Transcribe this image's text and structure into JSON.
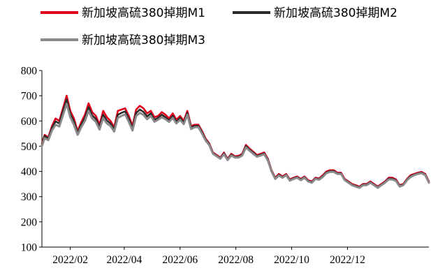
{
  "chart_data": {
    "type": "line",
    "title": "",
    "xlabel": "",
    "ylabel": "",
    "ylim": [
      100,
      800
    ],
    "yticks": [
      100,
      200,
      300,
      400,
      500,
      600,
      700,
      800
    ],
    "xlim": [
      "2022-01-01",
      "2023-02-28"
    ],
    "xticks": [
      "2022/02",
      "2022/04",
      "2022/06",
      "2022/08",
      "2022/10",
      "2022/12"
    ],
    "xtick_dates": [
      "2022-02-01",
      "2022-04-01",
      "2022-06-01",
      "2022-08-01",
      "2022-10-01",
      "2022-12-01"
    ],
    "grid": false,
    "legend_position": "top",
    "series": [
      {
        "name": "新加坡高硫380掉期M1",
        "color": "#e0001b",
        "x": [
          "2022-01-01",
          "2022-01-04",
          "2022-01-08",
          "2022-01-12",
          "2022-01-16",
          "2022-01-20",
          "2022-01-24",
          "2022-01-28",
          "2022-02-01",
          "2022-02-05",
          "2022-02-09",
          "2022-02-13",
          "2022-02-17",
          "2022-02-21",
          "2022-02-25",
          "2022-03-01",
          "2022-03-05",
          "2022-03-09",
          "2022-03-13",
          "2022-03-17",
          "2022-03-21",
          "2022-03-25",
          "2022-03-29",
          "2022-04-02",
          "2022-04-06",
          "2022-04-10",
          "2022-04-14",
          "2022-04-18",
          "2022-04-22",
          "2022-04-26",
          "2022-04-30",
          "2022-05-04",
          "2022-05-08",
          "2022-05-12",
          "2022-05-16",
          "2022-05-20",
          "2022-05-24",
          "2022-05-28",
          "2022-06-01",
          "2022-06-05",
          "2022-06-09",
          "2022-06-13",
          "2022-06-17",
          "2022-06-21",
          "2022-06-25",
          "2022-06-29",
          "2022-07-03",
          "2022-07-07",
          "2022-07-11",
          "2022-07-15",
          "2022-07-19",
          "2022-07-23",
          "2022-07-27",
          "2022-07-31",
          "2022-08-04",
          "2022-08-08",
          "2022-08-12",
          "2022-08-16",
          "2022-08-20",
          "2022-08-24",
          "2022-08-28",
          "2022-09-01",
          "2022-09-05",
          "2022-09-09",
          "2022-09-13",
          "2022-09-17",
          "2022-09-21",
          "2022-09-25",
          "2022-09-29",
          "2022-10-03",
          "2022-10-07",
          "2022-10-11",
          "2022-10-15",
          "2022-10-19",
          "2022-10-23",
          "2022-10-27",
          "2022-10-31",
          "2022-11-04",
          "2022-11-08",
          "2022-11-12",
          "2022-11-16",
          "2022-11-20",
          "2022-11-24",
          "2022-11-28",
          "2022-12-02",
          "2022-12-06",
          "2022-12-10",
          "2022-12-14",
          "2022-12-18",
          "2022-12-22",
          "2022-12-26",
          "2022-12-30",
          "2023-01-03",
          "2023-01-07",
          "2023-01-11",
          "2023-01-15",
          "2023-01-19",
          "2023-01-23",
          "2023-01-27",
          "2023-01-31",
          "2023-02-04",
          "2023-02-08",
          "2023-02-12",
          "2023-02-16",
          "2023-02-20",
          "2023-02-24",
          "2023-02-28"
        ],
        "values": [
          510,
          545,
          535,
          580,
          610,
          600,
          650,
          700,
          640,
          610,
          560,
          595,
          625,
          670,
          635,
          620,
          585,
          640,
          615,
          600,
          575,
          640,
          645,
          650,
          620,
          580,
          645,
          660,
          650,
          630,
          640,
          615,
          620,
          635,
          625,
          610,
          630,
          605,
          620,
          600,
          640,
          580,
          585,
          585,
          560,
          530,
          510,
          475,
          465,
          455,
          475,
          450,
          470,
          460,
          462,
          470,
          505,
          490,
          478,
          465,
          470,
          475,
          450,
          405,
          375,
          390,
          380,
          390,
          368,
          375,
          380,
          370,
          380,
          365,
          360,
          375,
          372,
          385,
          400,
          405,
          405,
          395,
          395,
          370,
          360,
          350,
          345,
          340,
          350,
          350,
          360,
          350,
          340,
          350,
          360,
          375,
          375,
          368,
          345,
          350,
          370,
          385,
          390,
          395,
          398,
          390,
          360
        ]
      },
      {
        "name": "新加坡高硫380掉期M2",
        "color": "#2b2b2b",
        "x": [
          "2022-01-01",
          "2022-01-04",
          "2022-01-08",
          "2022-01-12",
          "2022-01-16",
          "2022-01-20",
          "2022-01-24",
          "2022-01-28",
          "2022-02-01",
          "2022-02-05",
          "2022-02-09",
          "2022-02-13",
          "2022-02-17",
          "2022-02-21",
          "2022-02-25",
          "2022-03-01",
          "2022-03-05",
          "2022-03-09",
          "2022-03-13",
          "2022-03-17",
          "2022-03-21",
          "2022-03-25",
          "2022-03-29",
          "2022-04-02",
          "2022-04-06",
          "2022-04-10",
          "2022-04-14",
          "2022-04-18",
          "2022-04-22",
          "2022-04-26",
          "2022-04-30",
          "2022-05-04",
          "2022-05-08",
          "2022-05-12",
          "2022-05-16",
          "2022-05-20",
          "2022-05-24",
          "2022-05-28",
          "2022-06-01",
          "2022-06-05",
          "2022-06-09",
          "2022-06-13",
          "2022-06-17",
          "2022-06-21",
          "2022-06-25",
          "2022-06-29",
          "2022-07-03",
          "2022-07-07",
          "2022-07-11",
          "2022-07-15",
          "2022-07-19",
          "2022-07-23",
          "2022-07-27",
          "2022-07-31",
          "2022-08-04",
          "2022-08-08",
          "2022-08-12",
          "2022-08-16",
          "2022-08-20",
          "2022-08-24",
          "2022-08-28",
          "2022-09-01",
          "2022-09-05",
          "2022-09-09",
          "2022-09-13",
          "2022-09-17",
          "2022-09-21",
          "2022-09-25",
          "2022-09-29",
          "2022-10-03",
          "2022-10-07",
          "2022-10-11",
          "2022-10-15",
          "2022-10-19",
          "2022-10-23",
          "2022-10-27",
          "2022-10-31",
          "2022-11-04",
          "2022-11-08",
          "2022-11-12",
          "2022-11-16",
          "2022-11-20",
          "2022-11-24",
          "2022-11-28",
          "2022-12-02",
          "2022-12-06",
          "2022-12-10",
          "2022-12-14",
          "2022-12-18",
          "2022-12-22",
          "2022-12-26",
          "2022-12-30",
          "2023-01-03",
          "2023-01-07",
          "2023-01-11",
          "2023-01-15",
          "2023-01-19",
          "2023-01-23",
          "2023-01-27",
          "2023-01-31",
          "2023-02-04",
          "2023-02-08",
          "2023-02-12",
          "2023-02-16",
          "2023-02-20",
          "2023-02-24",
          "2023-02-28"
        ],
        "values": [
          505,
          540,
          530,
          572,
          598,
          590,
          638,
          685,
          628,
          598,
          552,
          585,
          612,
          655,
          622,
          608,
          575,
          625,
          602,
          590,
          566,
          625,
          632,
          638,
          608,
          570,
          632,
          645,
          636,
          618,
          630,
          605,
          612,
          625,
          615,
          602,
          620,
          597,
          612,
          593,
          632,
          574,
          580,
          580,
          555,
          526,
          507,
          472,
          462,
          452,
          471,
          447,
          466,
          457,
          458,
          466,
          500,
          486,
          474,
          461,
          466,
          471,
          446,
          402,
          372,
          386,
          377,
          387,
          365,
          372,
          377,
          367,
          377,
          362,
          357,
          372,
          369,
          381,
          396,
          401,
          401,
          392,
          392,
          367,
          357,
          347,
          342,
          337,
          347,
          347,
          357,
          347,
          337,
          347,
          357,
          371,
          371,
          365,
          342,
          347,
          367,
          381,
          387,
          392,
          395,
          387,
          357
        ]
      },
      {
        "name": "新加坡高硫380掉期M3",
        "color": "#8a8a8a",
        "x": [
          "2022-01-01",
          "2022-01-04",
          "2022-01-08",
          "2022-01-12",
          "2022-01-16",
          "2022-01-20",
          "2022-01-24",
          "2022-01-28",
          "2022-02-01",
          "2022-02-05",
          "2022-02-09",
          "2022-02-13",
          "2022-02-17",
          "2022-02-21",
          "2022-02-25",
          "2022-03-01",
          "2022-03-05",
          "2022-03-09",
          "2022-03-13",
          "2022-03-17",
          "2022-03-21",
          "2022-03-25",
          "2022-03-29",
          "2022-04-02",
          "2022-04-06",
          "2022-04-10",
          "2022-04-14",
          "2022-04-18",
          "2022-04-22",
          "2022-04-26",
          "2022-04-30",
          "2022-05-04",
          "2022-05-08",
          "2022-05-12",
          "2022-05-16",
          "2022-05-20",
          "2022-05-24",
          "2022-05-28",
          "2022-06-01",
          "2022-06-05",
          "2022-06-09",
          "2022-06-13",
          "2022-06-17",
          "2022-06-21",
          "2022-06-25",
          "2022-06-29",
          "2022-07-03",
          "2022-07-07",
          "2022-07-11",
          "2022-07-15",
          "2022-07-19",
          "2022-07-23",
          "2022-07-27",
          "2022-07-31",
          "2022-08-04",
          "2022-08-08",
          "2022-08-12",
          "2022-08-16",
          "2022-08-20",
          "2022-08-24",
          "2022-08-28",
          "2022-09-01",
          "2022-09-05",
          "2022-09-09",
          "2022-09-13",
          "2022-09-17",
          "2022-09-21",
          "2022-09-25",
          "2022-09-29",
          "2022-10-03",
          "2022-10-07",
          "2022-10-11",
          "2022-10-15",
          "2022-10-19",
          "2022-10-23",
          "2022-10-27",
          "2022-10-31",
          "2022-11-04",
          "2022-11-08",
          "2022-11-12",
          "2022-11-16",
          "2022-11-20",
          "2022-11-24",
          "2022-11-28",
          "2022-12-02",
          "2022-12-06",
          "2022-12-10",
          "2022-12-14",
          "2022-12-18",
          "2022-12-22",
          "2022-12-26",
          "2022-12-30",
          "2023-01-03",
          "2023-01-07",
          "2023-01-11",
          "2023-01-15",
          "2023-01-19",
          "2023-01-23",
          "2023-01-27",
          "2023-01-31",
          "2023-02-04",
          "2023-02-08",
          "2023-02-12",
          "2023-02-16",
          "2023-02-20",
          "2023-02-24",
          "2023-02-28"
        ],
        "values": [
          500,
          532,
          524,
          562,
          585,
          578,
          622,
          668,
          615,
          585,
          545,
          575,
          600,
          640,
          610,
          596,
          566,
          612,
          590,
          580,
          558,
          612,
          620,
          626,
          596,
          562,
          620,
          632,
          624,
          607,
          620,
          597,
          605,
          615,
          607,
          596,
          612,
          590,
          605,
          587,
          625,
          568,
          575,
          575,
          550,
          522,
          504,
          470,
          460,
          450,
          468,
          445,
          463,
          455,
          455,
          463,
          495,
          482,
          470,
          458,
          463,
          468,
          443,
          400,
          370,
          384,
          375,
          385,
          363,
          370,
          375,
          365,
          375,
          360,
          355,
          370,
          367,
          378,
          393,
          398,
          398,
          390,
          390,
          365,
          355,
          345,
          340,
          335,
          345,
          345,
          355,
          345,
          335,
          345,
          355,
          368,
          368,
          362,
          340,
          345,
          365,
          378,
          385,
          390,
          393,
          385,
          355
        ]
      }
    ]
  }
}
